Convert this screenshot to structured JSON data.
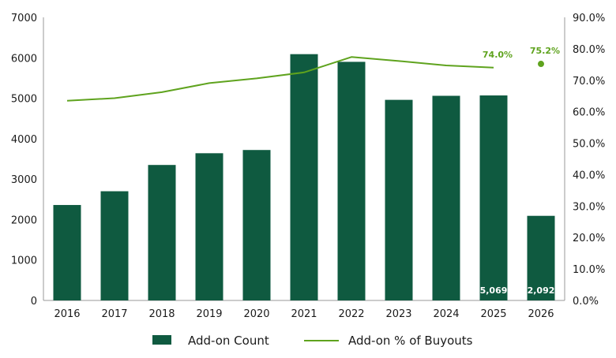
{
  "chart_data": {
    "type": "bar",
    "categories": [
      "2016",
      "2017",
      "2018",
      "2019",
      "2020",
      "2021",
      "2022",
      "2023",
      "2024",
      "2025",
      "2026"
    ],
    "series": [
      {
        "name": "Add-on Count",
        "type": "bar",
        "axis": "left",
        "values": [
          2360,
          2700,
          3350,
          3640,
          3720,
          6090,
          5900,
          4960,
          5060,
          5069,
          2092
        ],
        "data_labels": [
          "",
          "",
          "",
          "",
          "",
          "",
          "",
          "",
          "",
          "5,069",
          "2,092"
        ]
      },
      {
        "name": "Add-on % of Buyouts",
        "type": "line",
        "axis": "right",
        "values": [
          63.5,
          64.3,
          66.2,
          69.1,
          70.6,
          72.5,
          77.4,
          76.1,
          74.7,
          74.0,
          75.2
        ],
        "line_categories": [
          "2016",
          "2017",
          "2018",
          "2019",
          "2020",
          "2021",
          "2022",
          "2023",
          "2024",
          "2025"
        ],
        "point_categories": [
          "2026"
        ],
        "data_labels": [
          "",
          "",
          "",
          "",
          "",
          "",
          "",
          "",
          "",
          "74.0%",
          "75.2%"
        ]
      }
    ],
    "y_left": {
      "lim": [
        0,
        7000
      ],
      "ticks": [
        "0",
        "1000",
        "2000",
        "3000",
        "4000",
        "5000",
        "6000",
        "7000"
      ]
    },
    "y_right": {
      "lim": [
        0,
        90
      ],
      "ticks": [
        "0.0%",
        "10.0%",
        "20.0%",
        "30.0%",
        "40.0%",
        "50.0%",
        "60.0%",
        "70.0%",
        "80.0%",
        "90.0%"
      ]
    },
    "title": "",
    "xlabel": "",
    "ylabel": "",
    "grid": false,
    "legend_position": "bottom",
    "colors": {
      "bar": "#0f5a40",
      "line": "#5fa31e",
      "text": "#1a1a1a",
      "axis": "#9a9a9a"
    }
  }
}
